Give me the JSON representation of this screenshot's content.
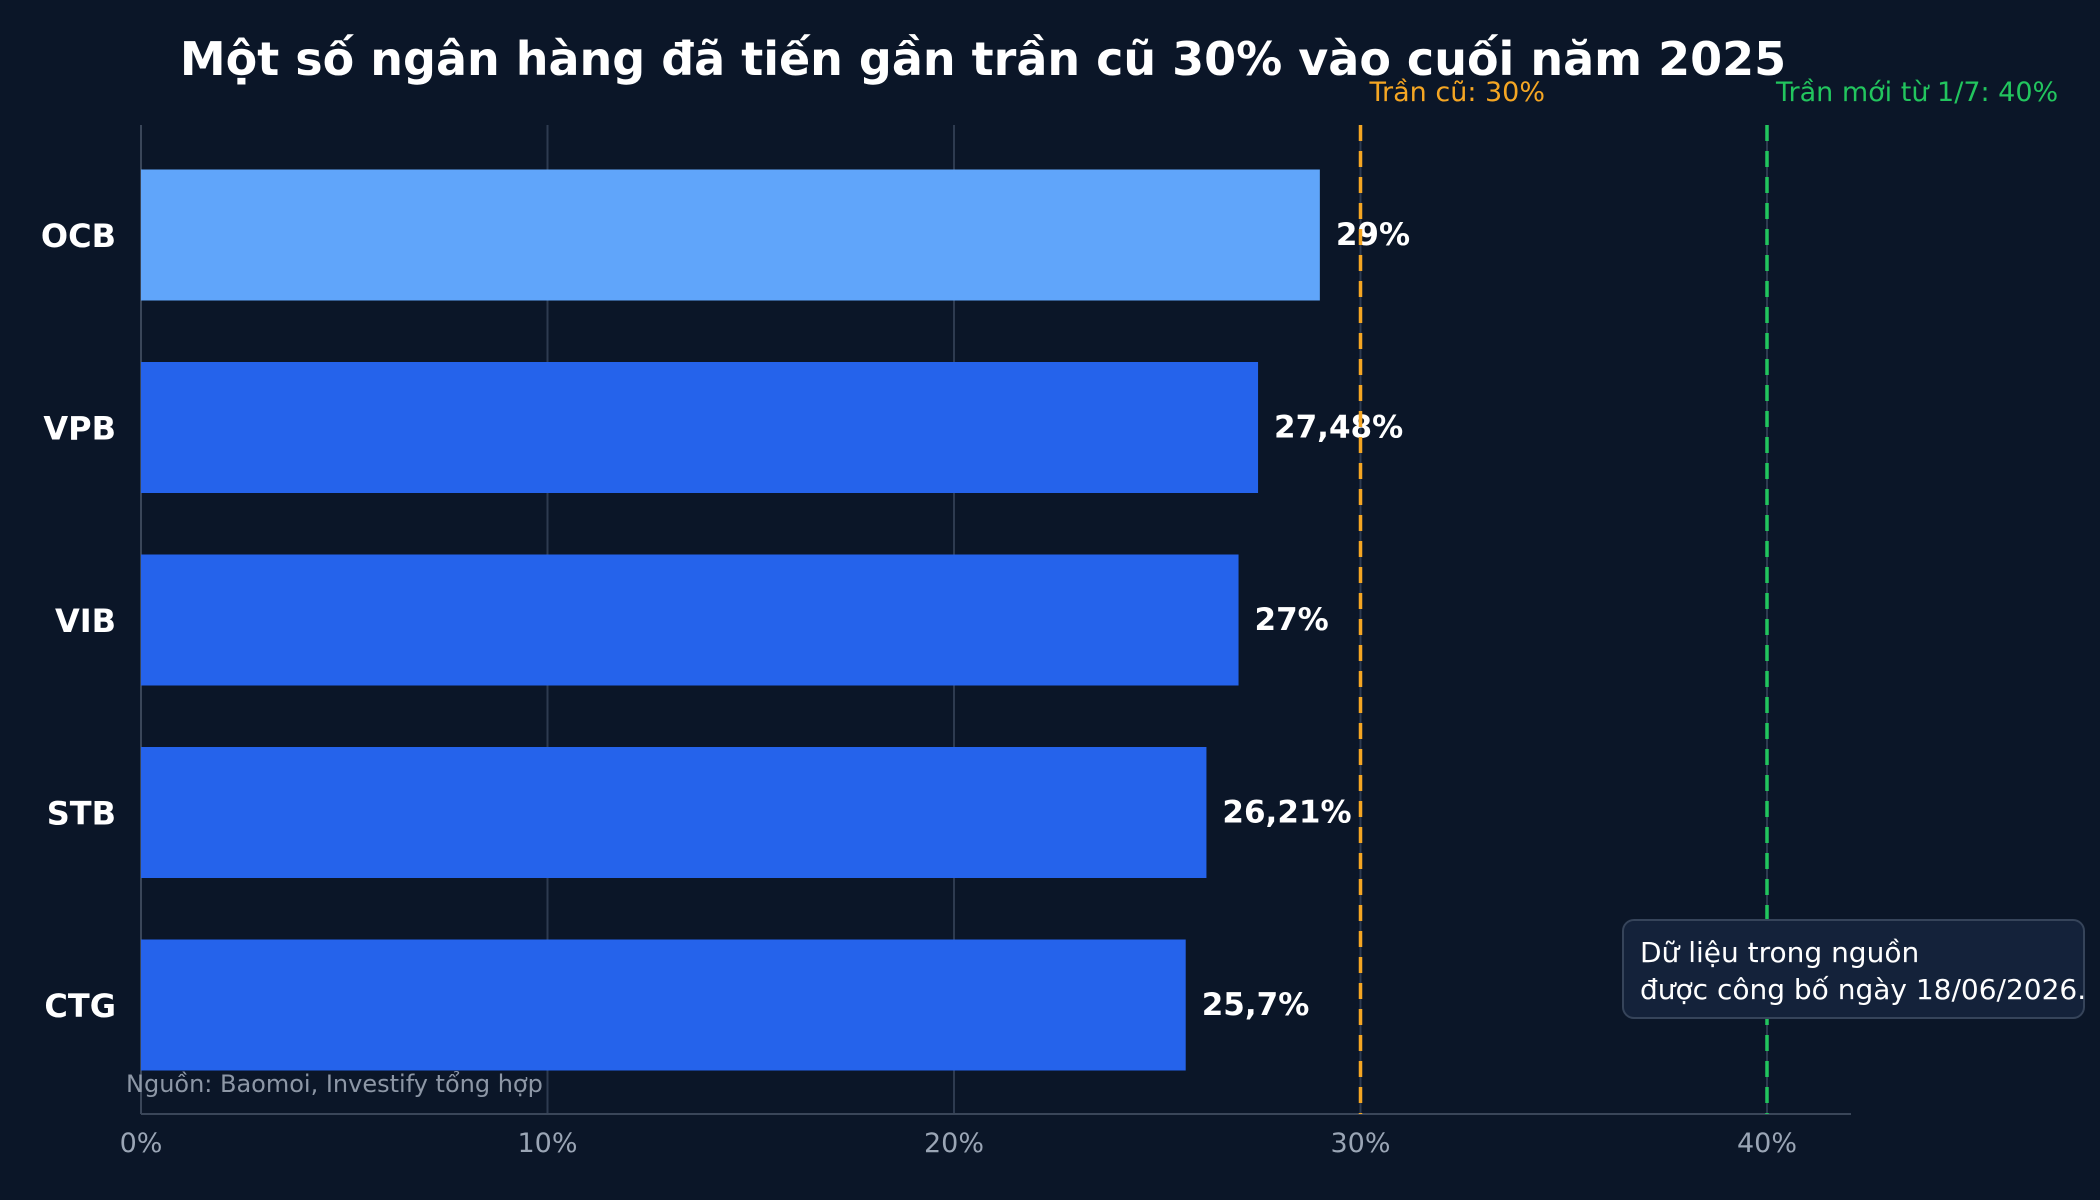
{
  "chart_data": {
    "type": "bar",
    "orientation": "horizontal",
    "title": "Một số ngân hàng đã tiến gần trần cũ 30% vào cuối năm 2025",
    "categories": [
      "OCB",
      "VPB",
      "VIB",
      "STB",
      "CTG"
    ],
    "values": [
      29,
      27.48,
      27,
      26.21,
      25.7
    ],
    "value_labels": [
      "29%",
      "27,48%",
      "27%",
      "26,21%",
      "25,7%"
    ],
    "xlim": [
      0,
      42
    ],
    "x_ticks": [
      0,
      10,
      20,
      30,
      40
    ],
    "x_tick_labels": [
      "0%",
      "10%",
      "20%",
      "30%",
      "40%"
    ],
    "grid": true,
    "bar_colors": [
      "#60a5fa",
      "#2563eb",
      "#2563eb",
      "#2563eb",
      "#2563eb"
    ],
    "reference_lines": [
      {
        "value": 30,
        "label": "Trần cũ: 30%",
        "color": "#f5a623"
      },
      {
        "value": 40,
        "label": "Trần mới từ 1/7: 40%",
        "color": "#22c55e"
      }
    ],
    "source": "Nguồn: Baomoi, Investify tổng hợp",
    "note_lines": [
      "Dữ liệu trong nguồn",
      "được công bố ngày 18/06/2026."
    ]
  }
}
